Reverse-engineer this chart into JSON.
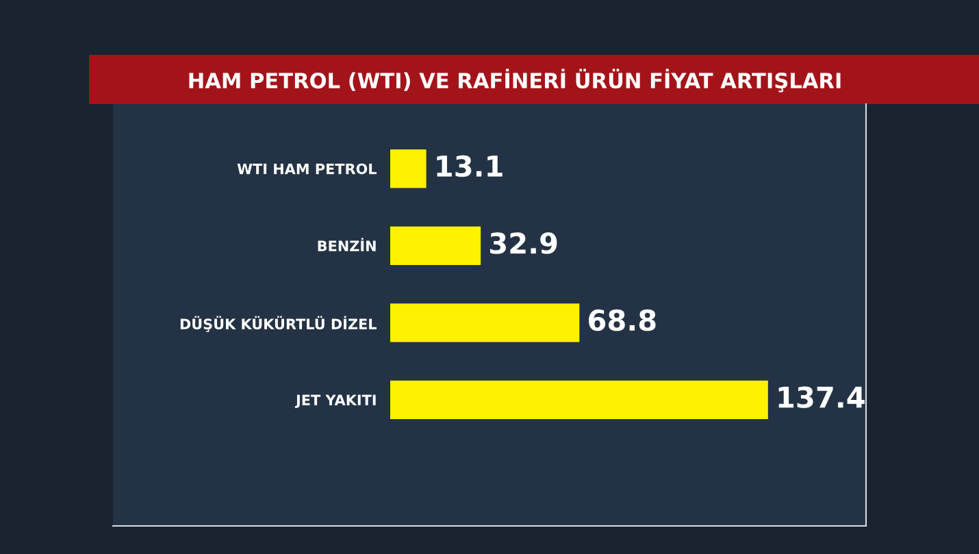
{
  "chart_data": {
    "type": "bar",
    "orientation": "horizontal",
    "title": "HAM PETROL (WTI) VE RAFİNERİ ÜRÜN FİYAT ARTIŞLARI",
    "categories": [
      "WTI HAM PETROL",
      "BENZİN",
      "DÜŞÜK KÜKÜRTLÜ DİZEL",
      "JET YAKITI"
    ],
    "values": [
      13.1,
      32.9,
      68.8,
      137.4
    ],
    "color": "#fff200",
    "data_labels": true,
    "tick_labels": "y",
    "grid": false,
    "legend": false
  }
}
